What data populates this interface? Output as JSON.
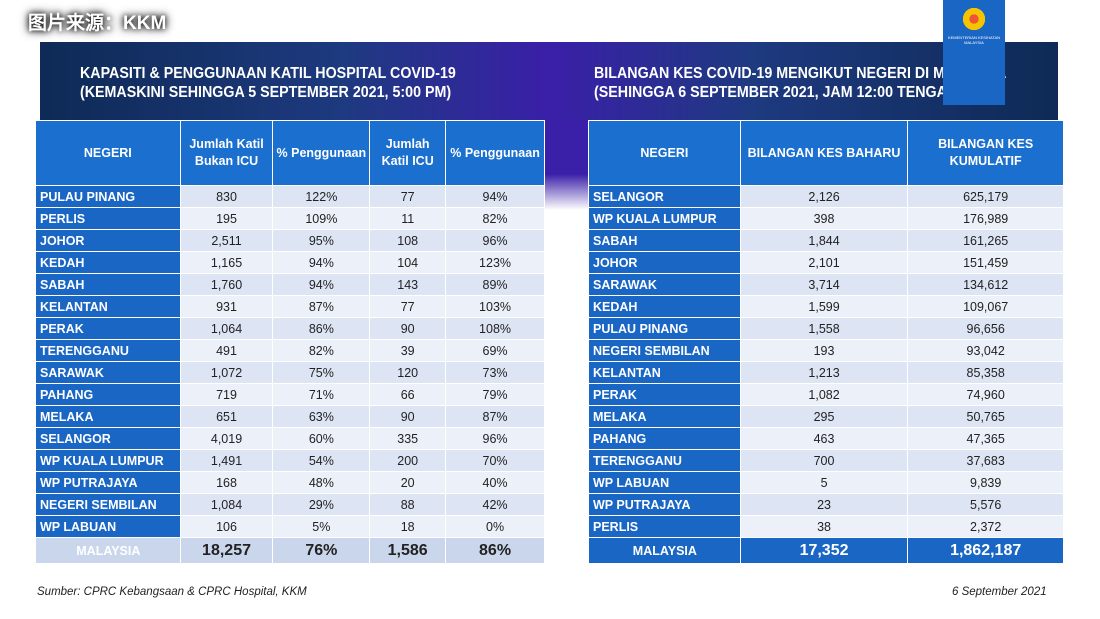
{
  "left": {
    "title1": "KAPASITI & PENGGUNAAN KATIL HOSPITAL COVID-19",
    "title2": "(KEMASKINI SEHINGGA 5 SEPTEMBER 2021, 5:00 PM)",
    "headers": [
      "NEGERI",
      "Jumlah Katil Bukan ICU",
      "% Penggunaan",
      "Jumlah Katil ICU",
      "% Penggunaan"
    ],
    "rows": [
      [
        "PULAU PINANG",
        "830",
        "122%",
        "77",
        "94%"
      ],
      [
        "PERLIS",
        "195",
        "109%",
        "11",
        "82%"
      ],
      [
        "JOHOR",
        "2,511",
        "95%",
        "108",
        "96%"
      ],
      [
        "KEDAH",
        "1,165",
        "94%",
        "104",
        "123%"
      ],
      [
        "SABAH",
        "1,760",
        "94%",
        "143",
        "89%"
      ],
      [
        "KELANTAN",
        "931",
        "87%",
        "77",
        "103%"
      ],
      [
        "PERAK",
        "1,064",
        "86%",
        "90",
        "108%"
      ],
      [
        "TERENGGANU",
        "491",
        "82%",
        "39",
        "69%"
      ],
      [
        "SARAWAK",
        "1,072",
        "75%",
        "120",
        "73%"
      ],
      [
        "PAHANG",
        "719",
        "71%",
        "66",
        "79%"
      ],
      [
        "MELAKA",
        "651",
        "63%",
        "90",
        "87%"
      ],
      [
        "SELANGOR",
        "4,019",
        "60%",
        "335",
        "96%"
      ],
      [
        "WP KUALA LUMPUR",
        "1,491",
        "54%",
        "200",
        "70%"
      ],
      [
        "WP PUTRAJAYA",
        "168",
        "48%",
        "20",
        "40%"
      ],
      [
        "NEGERI SEMBILAN",
        "1,084",
        "29%",
        "88",
        "42%"
      ],
      [
        "WP LABUAN",
        "106",
        "5%",
        "18",
        "0%"
      ]
    ],
    "total": [
      "MALAYSIA",
      "18,257",
      "76%",
      "1,586",
      "86%"
    ]
  },
  "right": {
    "title1": "BILANGAN KES COVID-19 MENGIKUT NEGERI DI MALAYSIA",
    "title2": "(SEHINGGA  6 SEPTEMBER 2021, JAM 12:00 TENGAH HARI)",
    "headers": [
      "NEGERI",
      "BILANGAN KES BAHARU",
      "BILANGAN KES KUMULATIF"
    ],
    "rows": [
      [
        "SELANGOR",
        "2,126",
        "625,179"
      ],
      [
        "WP KUALA LUMPUR",
        "398",
        "176,989"
      ],
      [
        "SABAH",
        "1,844",
        "161,265"
      ],
      [
        "JOHOR",
        "2,101",
        "151,459"
      ],
      [
        "SARAWAK",
        "3,714",
        "134,612"
      ],
      [
        "KEDAH",
        "1,599",
        "109,067"
      ],
      [
        "PULAU PINANG",
        "1,558",
        "96,656"
      ],
      [
        "NEGERI SEMBILAN",
        "193",
        "93,042"
      ],
      [
        "KELANTAN",
        "1,213",
        "85,358"
      ],
      [
        "PERAK",
        "1,082",
        "74,960"
      ],
      [
        "MELAKA",
        "295",
        "50,765"
      ],
      [
        "PAHANG",
        "463",
        "47,365"
      ],
      [
        "TERENGGANU",
        "700",
        "37,683"
      ],
      [
        "WP LABUAN",
        "5",
        "9,839"
      ],
      [
        "WP PUTRAJAYA",
        "23",
        "5,576"
      ],
      [
        "PERLIS",
        "38",
        "2,372"
      ]
    ],
    "total": [
      "MALAYSIA",
      "17,352",
      "1,862,187"
    ]
  },
  "logo_text": "KEMENTERIAN KESIHATAN MALAYSIA",
  "source": "Sumber: CPRC Kebangsaan & CPRC Hospital, KKM",
  "date": "6 September 2021",
  "watermark": "图片来源：KKM"
}
